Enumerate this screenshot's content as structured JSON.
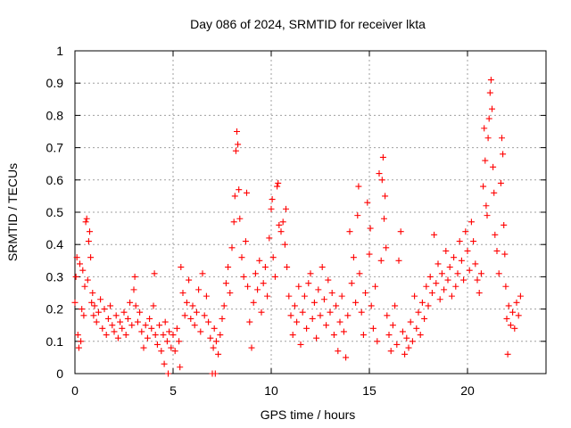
{
  "chart_data": {
    "type": "scatter",
    "title": "Day 086 of 2024, SRMTID for receiver lkta",
    "xlabel": "GPS time / hours",
    "ylabel": "SRMTID / TECUs",
    "xlim": [
      0,
      24
    ],
    "ylim": [
      0,
      1
    ],
    "xticks": [
      0,
      5,
      10,
      15,
      20
    ],
    "yticks": [
      0,
      0.1,
      0.2,
      0.3,
      0.4,
      0.5,
      0.6,
      0.7,
      0.8,
      0.9,
      1
    ],
    "xtick_labels": [
      "0",
      "5",
      "10",
      "15",
      "20"
    ],
    "ytick_labels": [
      "0",
      "0.1",
      "0.2",
      "0.3",
      "0.4",
      "0.5",
      "0.6",
      "0.7",
      "0.8",
      "0.9",
      "1"
    ],
    "grid": true,
    "marker": "+",
    "color": "#ff0000",
    "series": [
      {
        "name": "SRMTID",
        "points": [
          [
            0.0,
            0.22
          ],
          [
            0.05,
            0.3
          ],
          [
            0.1,
            0.36
          ],
          [
            0.15,
            0.12
          ],
          [
            0.2,
            0.08
          ],
          [
            0.25,
            0.34
          ],
          [
            0.3,
            0.1
          ],
          [
            0.35,
            0.2
          ],
          [
            0.4,
            0.32
          ],
          [
            0.45,
            0.18
          ],
          [
            0.5,
            0.27
          ],
          [
            0.55,
            0.47
          ],
          [
            0.6,
            0.48
          ],
          [
            0.65,
            0.29
          ],
          [
            0.7,
            0.41
          ],
          [
            0.75,
            0.44
          ],
          [
            0.8,
            0.36
          ],
          [
            0.85,
            0.22
          ],
          [
            0.9,
            0.25
          ],
          [
            0.95,
            0.18
          ],
          [
            1.0,
            0.21
          ],
          [
            1.1,
            0.16
          ],
          [
            1.2,
            0.19
          ],
          [
            1.3,
            0.23
          ],
          [
            1.4,
            0.14
          ],
          [
            1.5,
            0.2
          ],
          [
            1.6,
            0.12
          ],
          [
            1.7,
            0.17
          ],
          [
            1.8,
            0.21
          ],
          [
            1.9,
            0.15
          ],
          [
            2.0,
            0.13
          ],
          [
            2.1,
            0.18
          ],
          [
            2.2,
            0.11
          ],
          [
            2.3,
            0.16
          ],
          [
            2.4,
            0.14
          ],
          [
            2.5,
            0.19
          ],
          [
            2.6,
            0.12
          ],
          [
            2.7,
            0.17
          ],
          [
            2.8,
            0.22
          ],
          [
            2.9,
            0.15
          ],
          [
            3.0,
            0.26
          ],
          [
            3.05,
            0.3
          ],
          [
            3.1,
            0.21
          ],
          [
            3.2,
            0.16
          ],
          [
            3.3,
            0.19
          ],
          [
            3.4,
            0.13
          ],
          [
            3.5,
            0.08
          ],
          [
            3.6,
            0.15
          ],
          [
            3.7,
            0.11
          ],
          [
            3.8,
            0.17
          ],
          [
            3.9,
            0.14
          ],
          [
            4.0,
            0.21
          ],
          [
            4.05,
            0.31
          ],
          [
            4.1,
            0.12
          ],
          [
            4.2,
            0.09
          ],
          [
            4.3,
            0.15
          ],
          [
            4.4,
            0.07
          ],
          [
            4.5,
            0.12
          ],
          [
            4.55,
            0.03
          ],
          [
            4.6,
            0.16
          ],
          [
            4.7,
            0.1
          ],
          [
            4.75,
            0.0
          ],
          [
            4.8,
            0.13
          ],
          [
            4.9,
            0.08
          ],
          [
            5.0,
            0.12
          ],
          [
            5.1,
            0.07
          ],
          [
            5.2,
            0.14
          ],
          [
            5.3,
            0.1
          ],
          [
            5.35,
            0.02
          ],
          [
            5.4,
            0.33
          ],
          [
            5.5,
            0.25
          ],
          [
            5.6,
            0.18
          ],
          [
            5.7,
            0.22
          ],
          [
            5.8,
            0.29
          ],
          [
            5.9,
            0.17
          ],
          [
            6.0,
            0.21
          ],
          [
            6.1,
            0.15
          ],
          [
            6.2,
            0.19
          ],
          [
            6.3,
            0.26
          ],
          [
            6.4,
            0.13
          ],
          [
            6.5,
            0.31
          ],
          [
            6.6,
            0.18
          ],
          [
            6.7,
            0.24
          ],
          [
            6.8,
            0.16
          ],
          [
            6.9,
            0.11
          ],
          [
            7.0,
            0.0
          ],
          [
            7.05,
            0.08
          ],
          [
            7.1,
            0.14
          ],
          [
            7.15,
            0.0
          ],
          [
            7.2,
            0.1
          ],
          [
            7.3,
            0.06
          ],
          [
            7.4,
            0.12
          ],
          [
            7.5,
            0.17
          ],
          [
            7.6,
            0.21
          ],
          [
            7.7,
            0.28
          ],
          [
            7.8,
            0.33
          ],
          [
            7.9,
            0.25
          ],
          [
            8.0,
            0.39
          ],
          [
            8.1,
            0.47
          ],
          [
            8.15,
            0.55
          ],
          [
            8.2,
            0.69
          ],
          [
            8.25,
            0.75
          ],
          [
            8.3,
            0.71
          ],
          [
            8.35,
            0.57
          ],
          [
            8.4,
            0.48
          ],
          [
            8.5,
            0.36
          ],
          [
            8.6,
            0.3
          ],
          [
            8.7,
            0.41
          ],
          [
            8.75,
            0.56
          ],
          [
            8.8,
            0.27
          ],
          [
            8.9,
            0.16
          ],
          [
            9.0,
            0.08
          ],
          [
            9.1,
            0.22
          ],
          [
            9.2,
            0.31
          ],
          [
            9.3,
            0.26
          ],
          [
            9.4,
            0.35
          ],
          [
            9.5,
            0.19
          ],
          [
            9.6,
            0.28
          ],
          [
            9.7,
            0.33
          ],
          [
            9.8,
            0.24
          ],
          [
            9.9,
            0.42
          ],
          [
            10.0,
            0.51
          ],
          [
            10.05,
            0.54
          ],
          [
            10.1,
            0.36
          ],
          [
            10.2,
            0.3
          ],
          [
            10.3,
            0.58
          ],
          [
            10.35,
            0.59
          ],
          [
            10.4,
            0.46
          ],
          [
            10.5,
            0.44
          ],
          [
            10.6,
            0.47
          ],
          [
            10.7,
            0.4
          ],
          [
            10.75,
            0.51
          ],
          [
            10.8,
            0.33
          ],
          [
            10.9,
            0.24
          ],
          [
            11.0,
            0.18
          ],
          [
            11.1,
            0.12
          ],
          [
            11.2,
            0.21
          ],
          [
            11.3,
            0.16
          ],
          [
            11.4,
            0.27
          ],
          [
            11.5,
            0.09
          ],
          [
            11.6,
            0.19
          ],
          [
            11.7,
            0.24
          ],
          [
            11.8,
            0.14
          ],
          [
            11.9,
            0.28
          ],
          [
            12.0,
            0.31
          ],
          [
            12.1,
            0.17
          ],
          [
            12.2,
            0.22
          ],
          [
            12.3,
            0.11
          ],
          [
            12.4,
            0.26
          ],
          [
            12.5,
            0.18
          ],
          [
            12.6,
            0.33
          ],
          [
            12.7,
            0.23
          ],
          [
            12.8,
            0.15
          ],
          [
            12.9,
            0.29
          ],
          [
            13.0,
            0.19
          ],
          [
            13.1,
            0.25
          ],
          [
            13.2,
            0.12
          ],
          [
            13.3,
            0.21
          ],
          [
            13.4,
            0.07
          ],
          [
            13.5,
            0.16
          ],
          [
            13.6,
            0.24
          ],
          [
            13.7,
            0.13
          ],
          [
            13.8,
            0.05
          ],
          [
            13.9,
            0.18
          ],
          [
            14.0,
            0.44
          ],
          [
            14.1,
            0.28
          ],
          [
            14.2,
            0.36
          ],
          [
            14.3,
            0.22
          ],
          [
            14.4,
            0.49
          ],
          [
            14.45,
            0.58
          ],
          [
            14.5,
            0.31
          ],
          [
            14.6,
            0.19
          ],
          [
            14.7,
            0.12
          ],
          [
            14.8,
            0.25
          ],
          [
            14.9,
            0.53
          ],
          [
            15.0,
            0.37
          ],
          [
            15.05,
            0.45
          ],
          [
            15.1,
            0.21
          ],
          [
            15.2,
            0.14
          ],
          [
            15.3,
            0.27
          ],
          [
            15.4,
            0.1
          ],
          [
            15.5,
            0.62
          ],
          [
            15.6,
            0.35
          ],
          [
            15.65,
            0.6
          ],
          [
            15.7,
            0.67
          ],
          [
            15.75,
            0.48
          ],
          [
            15.8,
            0.55
          ],
          [
            15.85,
            0.39
          ],
          [
            15.9,
            0.18
          ],
          [
            16.0,
            0.12
          ],
          [
            16.1,
            0.07
          ],
          [
            16.2,
            0.15
          ],
          [
            16.3,
            0.21
          ],
          [
            16.4,
            0.09
          ],
          [
            16.5,
            0.35
          ],
          [
            16.6,
            0.44
          ],
          [
            16.7,
            0.13
          ],
          [
            16.8,
            0.06
          ],
          [
            16.9,
            0.11
          ],
          [
            17.0,
            0.08
          ],
          [
            17.1,
            0.16
          ],
          [
            17.2,
            0.1
          ],
          [
            17.3,
            0.24
          ],
          [
            17.4,
            0.14
          ],
          [
            17.5,
            0.19
          ],
          [
            17.6,
            0.12
          ],
          [
            17.7,
            0.22
          ],
          [
            17.8,
            0.17
          ],
          [
            17.9,
            0.27
          ],
          [
            18.0,
            0.21
          ],
          [
            18.1,
            0.3
          ],
          [
            18.2,
            0.25
          ],
          [
            18.3,
            0.43
          ],
          [
            18.4,
            0.28
          ],
          [
            18.5,
            0.34
          ],
          [
            18.6,
            0.23
          ],
          [
            18.7,
            0.31
          ],
          [
            18.8,
            0.26
          ],
          [
            18.9,
            0.38
          ],
          [
            19.0,
            0.29
          ],
          [
            19.1,
            0.33
          ],
          [
            19.2,
            0.24
          ],
          [
            19.3,
            0.36
          ],
          [
            19.4,
            0.27
          ],
          [
            19.5,
            0.31
          ],
          [
            19.6,
            0.41
          ],
          [
            19.7,
            0.35
          ],
          [
            19.8,
            0.29
          ],
          [
            19.9,
            0.44
          ],
          [
            20.0,
            0.38
          ],
          [
            20.1,
            0.32
          ],
          [
            20.2,
            0.47
          ],
          [
            20.3,
            0.41
          ],
          [
            20.4,
            0.34
          ],
          [
            20.5,
            0.29
          ],
          [
            20.6,
            0.25
          ],
          [
            20.7,
            0.31
          ],
          [
            20.8,
            0.58
          ],
          [
            20.85,
            0.76
          ],
          [
            20.9,
            0.66
          ],
          [
            20.95,
            0.52
          ],
          [
            21.0,
            0.49
          ],
          [
            21.05,
            0.73
          ],
          [
            21.1,
            0.79
          ],
          [
            21.15,
            0.87
          ],
          [
            21.2,
            0.91
          ],
          [
            21.25,
            0.82
          ],
          [
            21.3,
            0.64
          ],
          [
            21.35,
            0.56
          ],
          [
            21.4,
            0.43
          ],
          [
            21.5,
            0.38
          ],
          [
            21.6,
            0.31
          ],
          [
            21.7,
            0.59
          ],
          [
            21.75,
            0.73
          ],
          [
            21.8,
            0.68
          ],
          [
            21.85,
            0.46
          ],
          [
            21.9,
            0.37
          ],
          [
            21.95,
            0.27
          ],
          [
            22.0,
            0.17
          ],
          [
            22.05,
            0.06
          ],
          [
            22.1,
            0.21
          ],
          [
            22.2,
            0.15
          ],
          [
            22.3,
            0.19
          ],
          [
            22.4,
            0.14
          ],
          [
            22.5,
            0.22
          ],
          [
            22.6,
            0.18
          ],
          [
            22.7,
            0.24
          ]
        ]
      }
    ]
  }
}
